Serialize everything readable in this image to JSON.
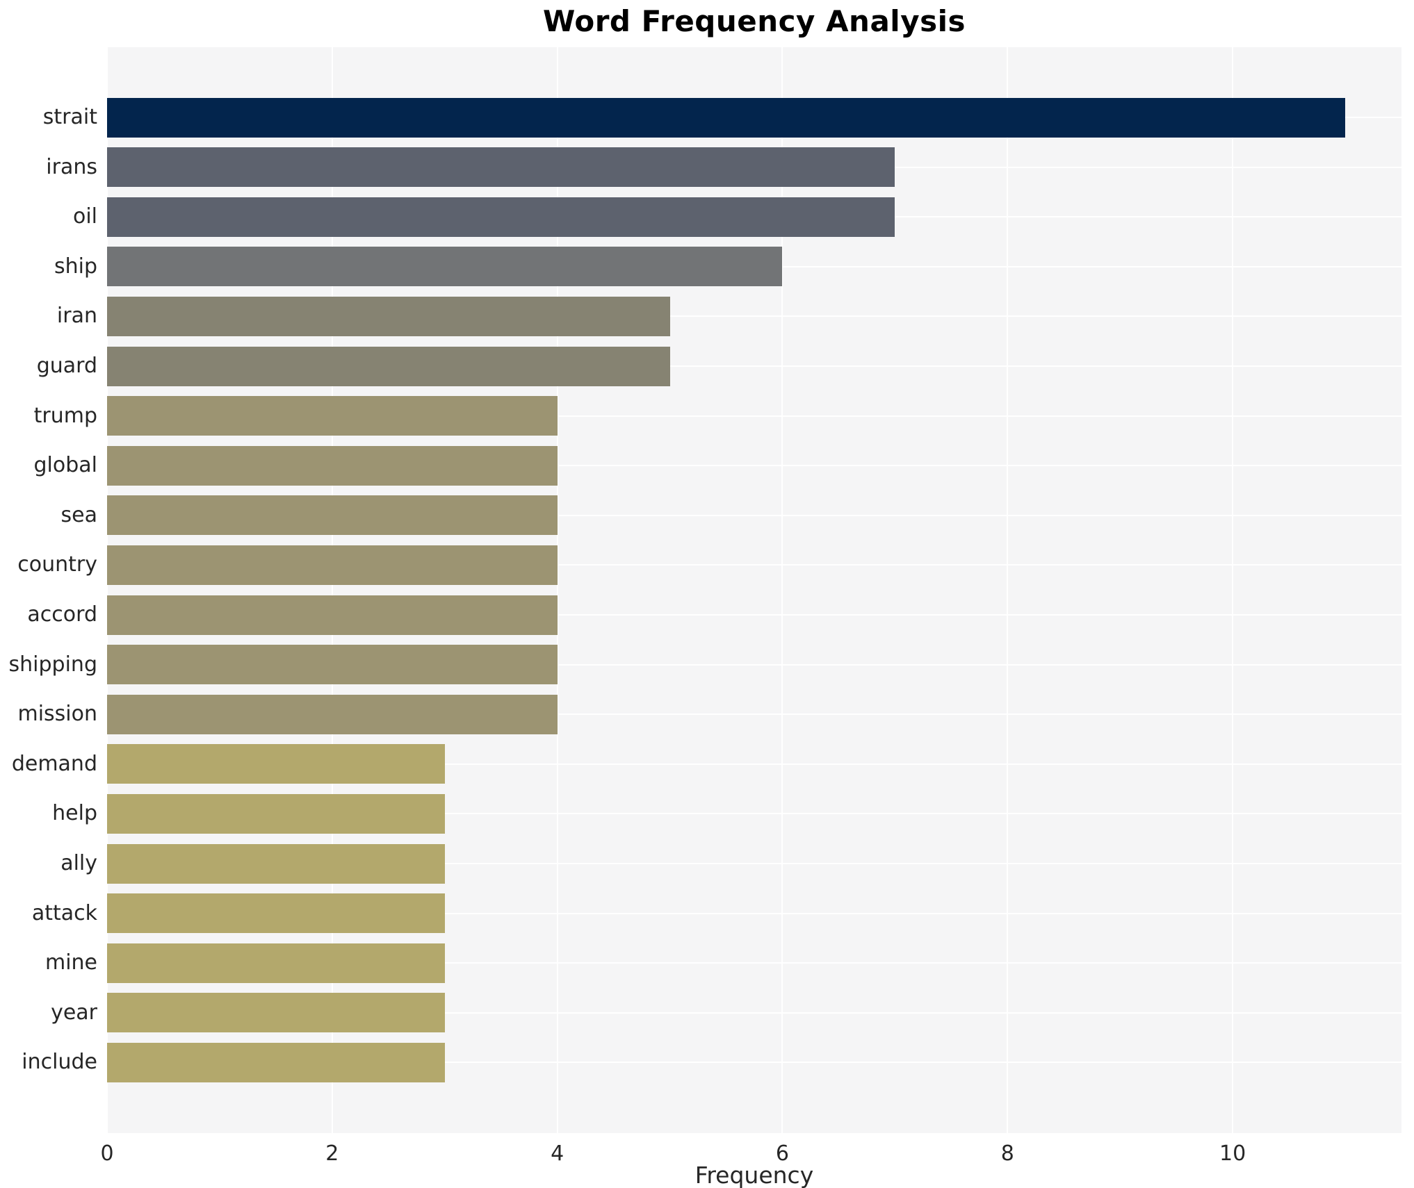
{
  "figure": {
    "background": "#ffffff",
    "plot_background": "#f5f5f6",
    "grid_color": "#ffffff",
    "text_color": "#262626"
  },
  "chart_data": {
    "type": "bar",
    "orientation": "horizontal",
    "title": "Word Frequency Analysis",
    "xlabel": "Frequency",
    "ylabel": "",
    "xlim": [
      0,
      11.5
    ],
    "xticks": [
      0,
      2,
      4,
      6,
      8,
      10
    ],
    "grid": true,
    "legend_position": "none",
    "categories": [
      "strait",
      "irans",
      "oil",
      "ship",
      "iran",
      "guard",
      "trump",
      "global",
      "sea",
      "country",
      "accord",
      "shipping",
      "mission",
      "demand",
      "help",
      "ally",
      "attack",
      "mine",
      "year",
      "include"
    ],
    "values": [
      11,
      7,
      7,
      6,
      5,
      5,
      4,
      4,
      4,
      4,
      4,
      4,
      4,
      3,
      3,
      3,
      3,
      3,
      3,
      3
    ],
    "bar_colors": [
      "#03254d",
      "#5d626e",
      "#5d626e",
      "#727476",
      "#868372",
      "#868372",
      "#9c9472",
      "#9c9472",
      "#9c9472",
      "#9c9472",
      "#9c9472",
      "#9c9472",
      "#9c9472",
      "#b3a86c",
      "#b3a86c",
      "#b3a86c",
      "#b3a86c",
      "#b3a86c",
      "#b3a86c",
      "#b3a86c"
    ]
  }
}
